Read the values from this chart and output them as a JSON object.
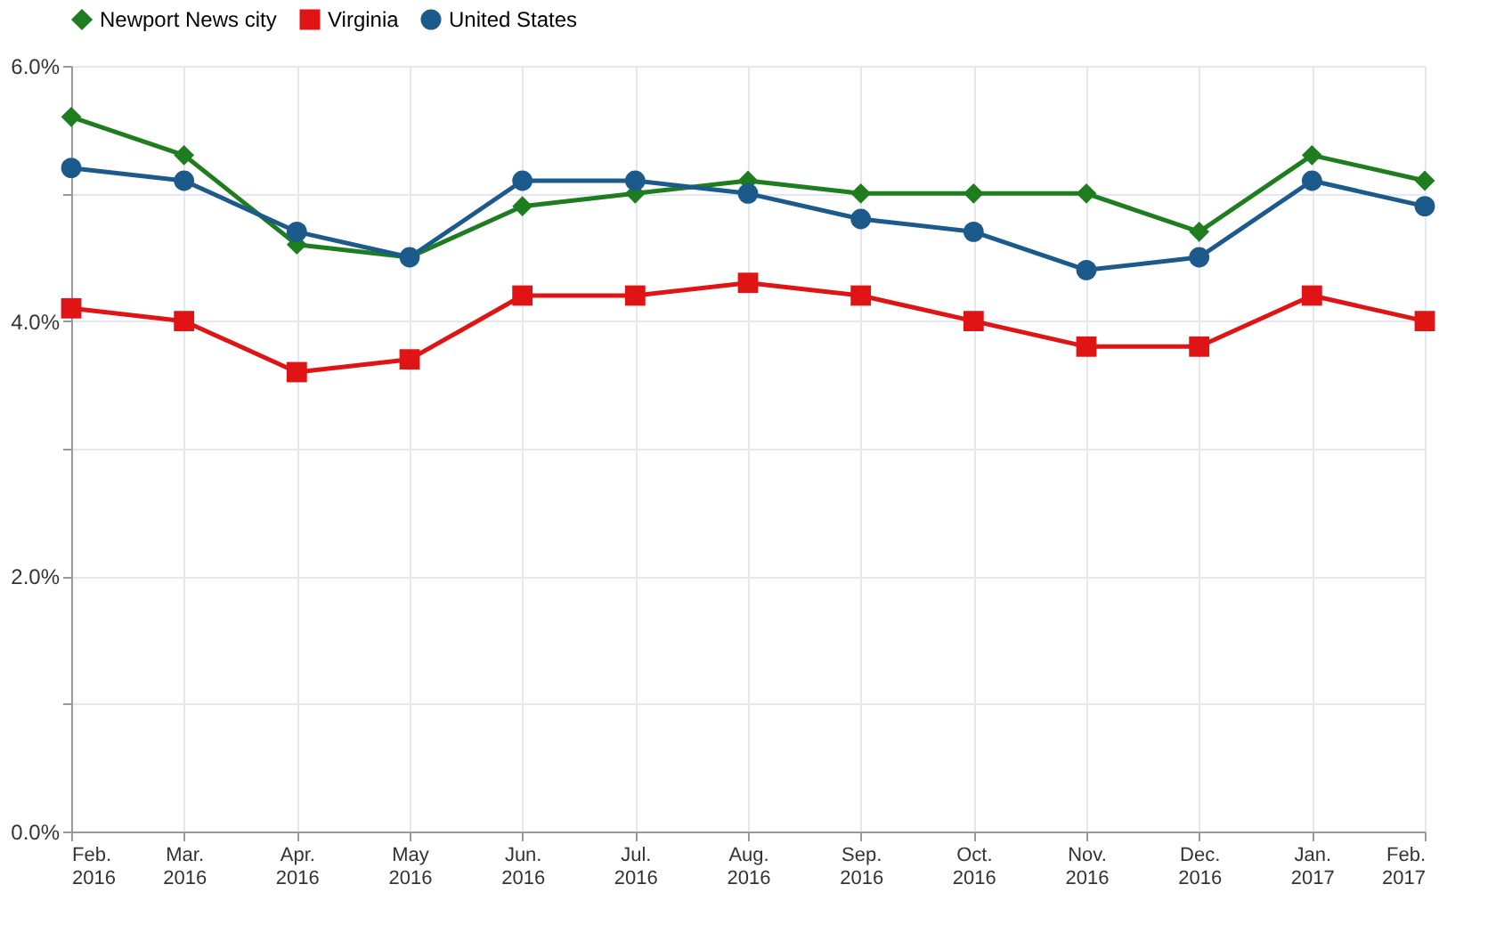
{
  "chart_data": {
    "type": "line",
    "categories": [
      "Feb. 2016",
      "Mar. 2016",
      "Apr. 2016",
      "May 2016",
      "Jun. 2016",
      "Jul. 2016",
      "Aug. 2016",
      "Sep. 2016",
      "Oct. 2016",
      "Nov. 2016",
      "Dec. 2016",
      "Jan. 2017",
      "Feb. 2017"
    ],
    "series": [
      {
        "name": "Newport News city",
        "color": "#1e7d1e",
        "marker": "diamond",
        "values": [
          5.6,
          5.3,
          4.6,
          4.5,
          4.9,
          5.0,
          5.1,
          5.0,
          5.0,
          5.0,
          4.7,
          5.3,
          5.1
        ]
      },
      {
        "name": "Virginia",
        "color": "#e01414",
        "marker": "square",
        "values": [
          4.1,
          4.0,
          3.6,
          3.7,
          4.2,
          4.2,
          4.3,
          4.2,
          4.0,
          3.8,
          3.8,
          4.2,
          4.0
        ]
      },
      {
        "name": "United States",
        "color": "#1d5a8c",
        "marker": "circle",
        "values": [
          5.2,
          5.1,
          4.7,
          4.5,
          5.1,
          5.1,
          5.0,
          4.8,
          4.7,
          4.4,
          4.5,
          5.1,
          4.9
        ]
      }
    ],
    "ylim": [
      0,
      6
    ],
    "yticks": [
      {
        "value": 0,
        "label": "0.0%"
      },
      {
        "value": 1,
        "label": null
      },
      {
        "value": 2,
        "label": "2.0%"
      },
      {
        "value": 3,
        "label": null
      },
      {
        "value": 4,
        "label": "4.0%"
      },
      {
        "value": 5,
        "label": null
      },
      {
        "value": 6,
        "label": "6.0%"
      }
    ],
    "grid": true,
    "legend": "top",
    "line_style": "solid"
  }
}
